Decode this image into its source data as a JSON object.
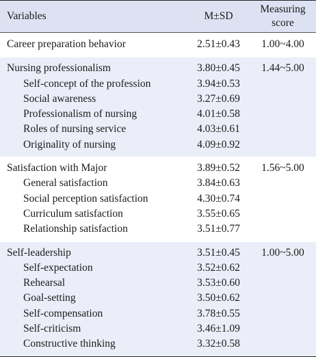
{
  "header": {
    "variables": "Variables",
    "msd": "M±SD",
    "score_line1": "Measuring",
    "score_line2": "score"
  },
  "groups": [
    {
      "label": "Career preparation behavior",
      "msd": "2.51±0.43",
      "score": "1.00~4.00",
      "shaded": false,
      "items": []
    },
    {
      "label": "Nursing professionalism",
      "msd": "3.80±0.45",
      "score": "1.44~5.00",
      "shaded": true,
      "items": [
        {
          "label": "Self-concept of the profession",
          "msd": "3.94±0.53"
        },
        {
          "label": "Social awareness",
          "msd": "3.27±0.69"
        },
        {
          "label": "Professionalism of nursing",
          "msd": "4.01±0.58"
        },
        {
          "label": "Roles of nursing service",
          "msd": "4.03±0.61"
        },
        {
          "label": "Originality of nursing",
          "msd": "4.09±0.92"
        }
      ]
    },
    {
      "label": "Satisfaction with Major",
      "msd": "3.89±0.52",
      "score": "1.56~5.00",
      "shaded": false,
      "items": [
        {
          "label": "General satisfaction",
          "msd": "3.84±0.63"
        },
        {
          "label": "Social perception satisfaction",
          "msd": "4.30±0.74"
        },
        {
          "label": "Curriculum satisfaction",
          "msd": "3.55±0.65"
        },
        {
          "label": "Relationship satisfaction",
          "msd": "3.51±0.77"
        }
      ]
    },
    {
      "label": "Self-leadership",
      "msd": "3.51±0.45",
      "score": "1.00~5.00",
      "shaded": true,
      "items": [
        {
          "label": "Self-expectation",
          "msd": "3.52±0.62"
        },
        {
          "label": "Rehearsal",
          "msd": "3.53±0.60"
        },
        {
          "label": "Goal-setting",
          "msd": "3.50±0.62"
        },
        {
          "label": "Self-compensation",
          "msd": "3.78±0.55"
        },
        {
          "label": "Self-criticism",
          "msd": "3.46±1.09"
        },
        {
          "label": "Constructive thinking",
          "msd": "3.32±0.58"
        }
      ]
    }
  ]
}
